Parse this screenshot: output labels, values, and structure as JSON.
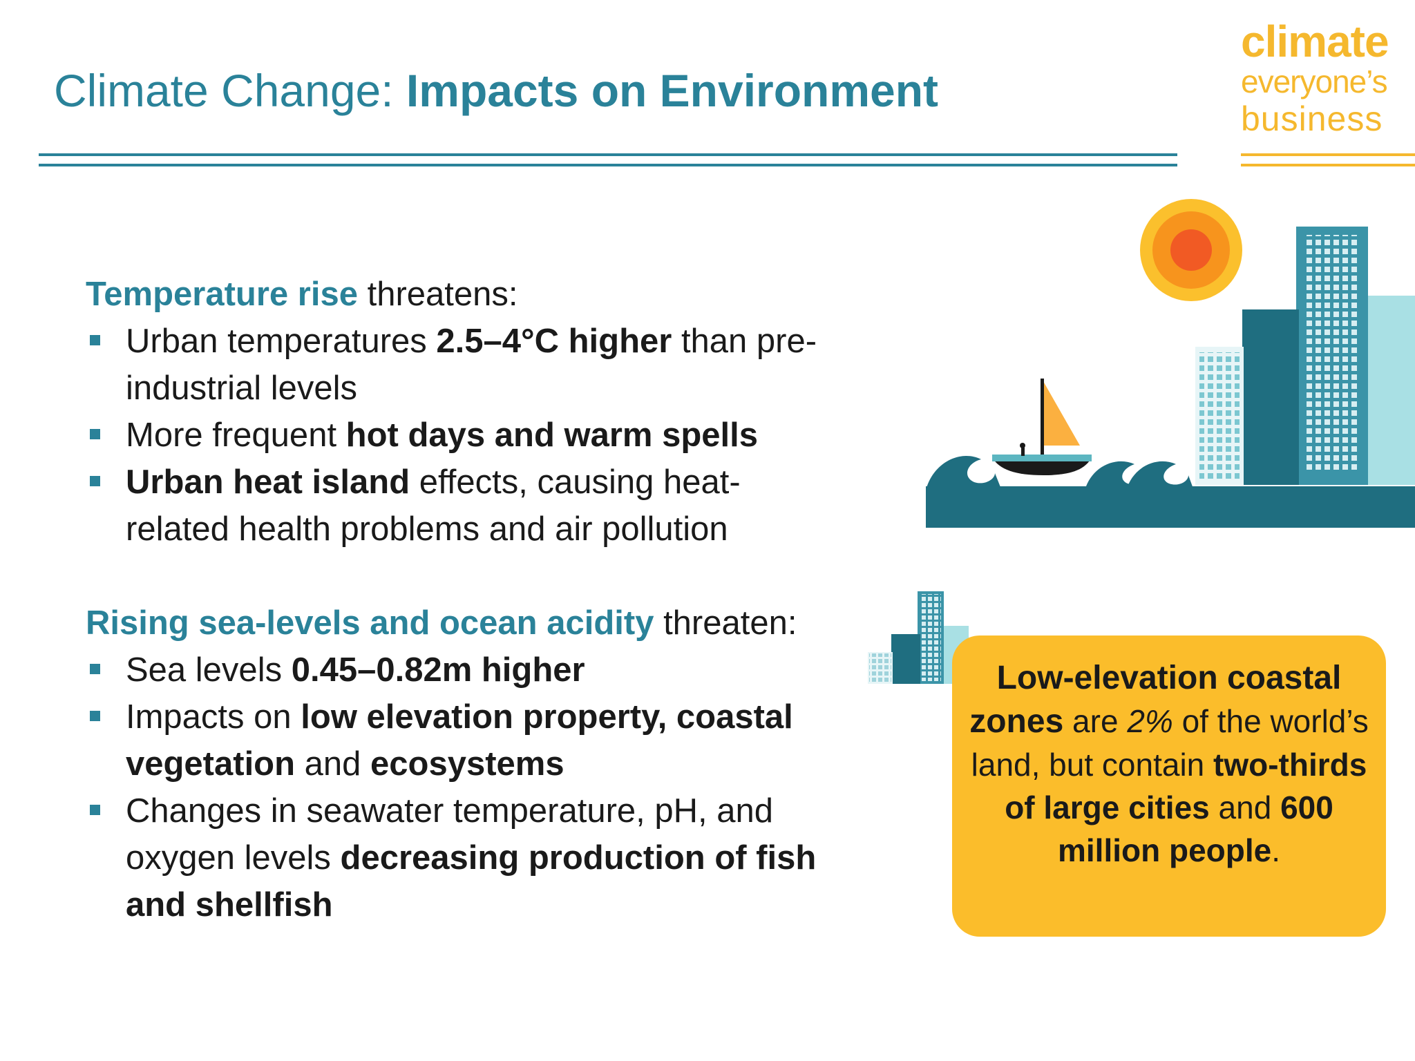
{
  "header": {
    "title_light": "Climate Change: ",
    "title_bold": "Impacts on Environment"
  },
  "logo": {
    "line1": "climate",
    "line2": "everyone’s",
    "line3": "business"
  },
  "section1": {
    "heading_highlight": "Temperature rise",
    "heading_rest": " threatens:",
    "bullets": [
      {
        "a": "Urban temperatures ",
        "b": "2.5–4°C higher",
        "c": " than pre-industrial levels"
      },
      {
        "a": "More frequent ",
        "b": "hot days and warm spells"
      },
      {
        "b": "Urban heat island",
        "c": " effects, causing heat-related health problems and air pollution"
      }
    ]
  },
  "section2": {
    "heading_highlight": "Rising sea-levels and ocean acidity",
    "heading_rest": " threaten:",
    "bullets": [
      {
        "a": "Sea levels ",
        "b": "0.45–0.82m higher"
      },
      {
        "a": "Impacts on ",
        "b": "low elevation property, coastal vegetation",
        "c": " and ",
        "d": "ecosystems"
      },
      {
        "a": "Changes in seawater temperature, pH, and oxygen levels ",
        "b": "decreasing production of fish and shellfish"
      }
    ]
  },
  "callout": {
    "head": "Low-elevation coastal zones",
    "t1": " are ",
    "pct": "2%",
    "t2": " of the world’s land, but contain ",
    "b1": "two-thirds of large cities",
    "t3": " and ",
    "b2": "600 million people",
    "t4": "."
  },
  "colors": {
    "teal": "#2a8299",
    "gold": "#fbbd2b",
    "logo_gold": "#f5b82e",
    "dark_teal": "#1f6e80",
    "light_aqua": "#a9e0e4"
  },
  "icons": [
    "sun-icon",
    "sailboat-icon",
    "waves-icon",
    "city-buildings-icon"
  ]
}
